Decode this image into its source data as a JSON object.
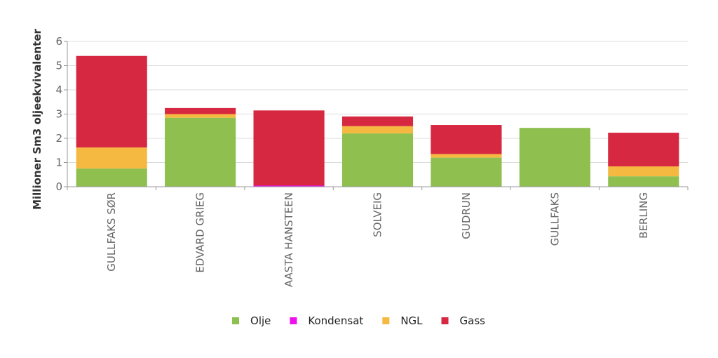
{
  "chart_data": {
    "type": "bar",
    "stacked": true,
    "title": "",
    "xlabel": "",
    "ylabel": "Millioner Sm3 oljeekvivalenter",
    "ylim": [
      0,
      6
    ],
    "yticks": [
      0,
      1,
      2,
      3,
      4,
      5,
      6
    ],
    "grid": "horizontal",
    "legend_position": "bottom",
    "categories": [
      "GULLFAKS SØR",
      "EDVARD GRIEG",
      "AASTA HANSTEEN",
      "SOLVEIG",
      "GUDRUN",
      "GULLFAKS",
      "BERLING"
    ],
    "series": [
      {
        "name": "Olje",
        "color": "#8fbf4f",
        "values": [
          0.75,
          2.85,
          0.0,
          2.2,
          1.2,
          2.43,
          0.43
        ]
      },
      {
        "name": "Kondensat",
        "color": "#ee11ee",
        "values": [
          0.0,
          0.0,
          0.05,
          0.0,
          0.0,
          0.0,
          0.0
        ]
      },
      {
        "name": "NGL",
        "color": "#f5b942",
        "values": [
          0.87,
          0.15,
          0.0,
          0.3,
          0.15,
          0.0,
          0.41
        ]
      },
      {
        "name": "Gass",
        "color": "#d62841",
        "values": [
          3.78,
          0.25,
          3.1,
          0.4,
          1.2,
          0.0,
          1.39
        ]
      }
    ]
  }
}
